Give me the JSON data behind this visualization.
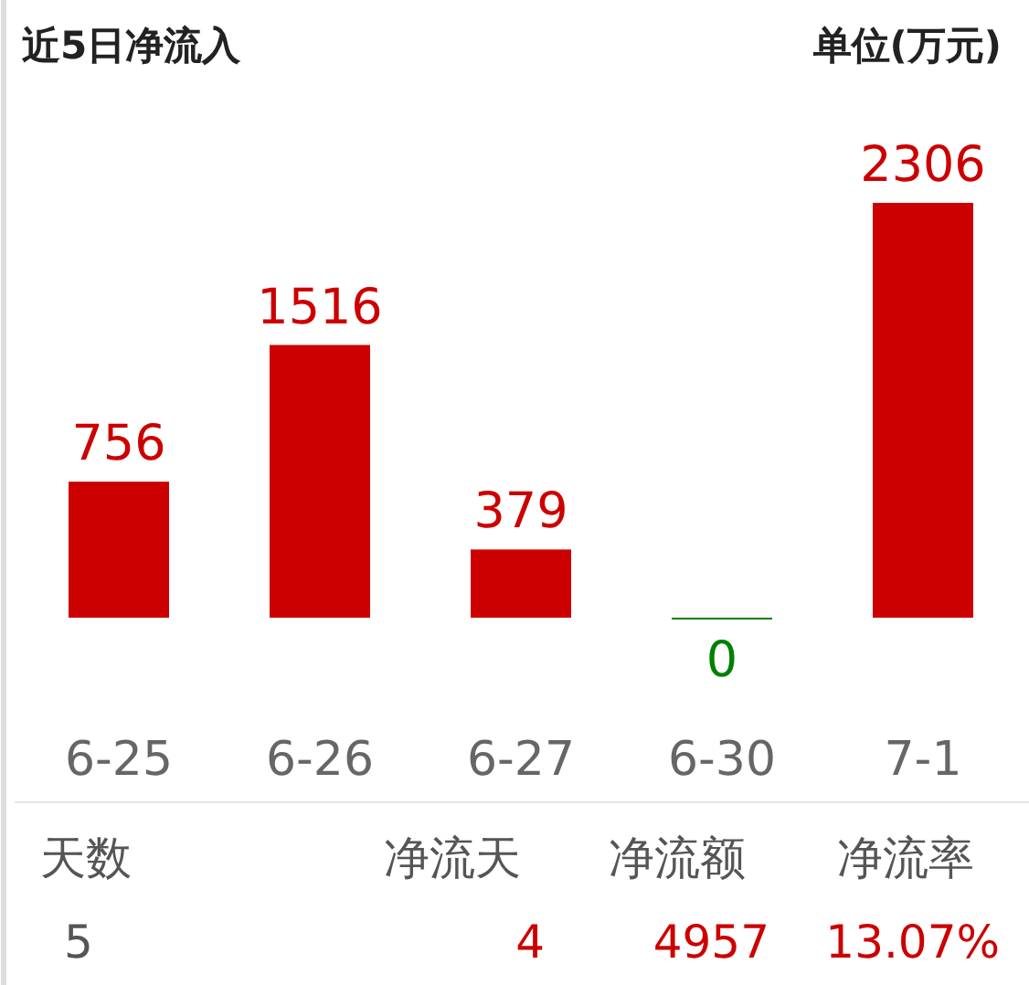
{
  "chart_data": {
    "type": "bar",
    "title": "近5日净流入",
    "subtitle": "单位(万元)",
    "categories": [
      "6-25",
      "6-26",
      "6-27",
      "6-30",
      "7-1"
    ],
    "values": [
      756,
      1516,
      379,
      0,
      2306
    ],
    "colors": [
      "#cc0000",
      "#cc0000",
      "#cc0000",
      "#008000",
      "#cc0000"
    ],
    "data_labels": true,
    "annotations": [
      "天数",
      "净流天",
      "净流额",
      "净流率",
      "5",
      "4",
      "4957",
      "13.07%"
    ]
  }
}
